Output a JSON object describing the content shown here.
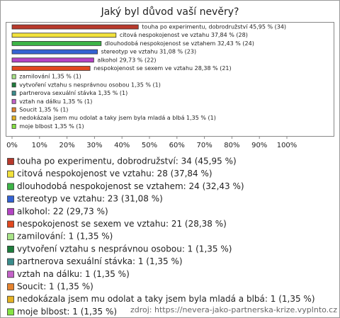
{
  "chart_data": {
    "type": "bar",
    "orientation": "horizontal",
    "title": "Jaký byl důvod vaší nevěry?",
    "values": [
      45.95,
      37.84,
      32.43,
      31.08,
      29.73,
      28.38,
      1.35,
      1.35,
      1.35,
      1.35,
      1.35,
      1.35,
      1.35
    ],
    "value_labels": [
      "touha po experimentu, dobrodružství 45,95 % (34)",
      "citová nespokojenost ve vztahu 37,84 % (28)",
      "dlouhodobá nespokojenost se vztahem 32,43 % (24)",
      "stereotyp ve vztahu 31,08 % (23)",
      "alkohol 29,73 % (22)",
      "nespokojenost se sexem ve vztahu 28,38 % (21)",
      "zamilování 1,35 % (1)",
      "vytvoření vztahu s nesprávnou osobou 1,35 % (1)",
      "partnerova sexuální stávka 1,35 % (1)",
      "vztah na dálku 1,35 % (1)",
      "Soucit 1,35 % (1)",
      "nedokázala jsem mu odolat a taky jsem byla mladá a blbá 1,35 % (1)",
      "moje blbost 1,35 % (1)"
    ],
    "colors": [
      "#b8392b",
      "#f2e23c",
      "#3db447",
      "#3463d4",
      "#b444c4",
      "#e2481f",
      "#a8e488",
      "#1d7d3c",
      "#3a8c8c",
      "#c462c8",
      "#e5832f",
      "#e5b224",
      "#86e444"
    ],
    "legend": [
      "touha po experimentu, dobrodružství: 34 (45,95 %)",
      "citová nespokojenost ve vztahu: 28 (37,84 %)",
      "dlouhodobá nespokojenost se vztahem: 24 (32,43 %)",
      "stereotyp ve vztahu: 23 (31,08 %)",
      "alkohol: 22 (29,73 %)",
      "nespokojenost se sexem ve vztahu: 21 (28,38 %)",
      "zamilování: 1 (1,35 %)",
      "vytvoření vztahu s nesprávnou osobou: 1 (1,35 %)",
      "partnerova sexuální stávka: 1 (1,35 %)",
      "vztah na dálku: 1 (1,35 %)",
      "Soucit: 1 (1,35 %)",
      "nedokázala jsem mu odolat a taky jsem byla mladá a blbá: 1 (1,35 %)",
      "moje blbost: 1 (1,35 %)"
    ],
    "xlim": [
      0,
      100
    ],
    "xticks": [
      {
        "value": 0,
        "label": "0%"
      },
      {
        "value": 10,
        "label": "10%"
      },
      {
        "value": 20,
        "label": "20%"
      },
      {
        "value": 30,
        "label": "30%"
      },
      {
        "value": 40,
        "label": "40%"
      },
      {
        "value": 50,
        "label": "50%"
      },
      {
        "value": 60,
        "label": "60%"
      },
      {
        "value": 70,
        "label": "70%"
      },
      {
        "value": 80,
        "label": "80%"
      },
      {
        "value": 90,
        "label": "90%"
      },
      {
        "value": 100,
        "label": "100%"
      }
    ],
    "grid": false,
    "source": "zdroj: https://nevera-jako-partnerska-krize.vyplnto.cz"
  }
}
